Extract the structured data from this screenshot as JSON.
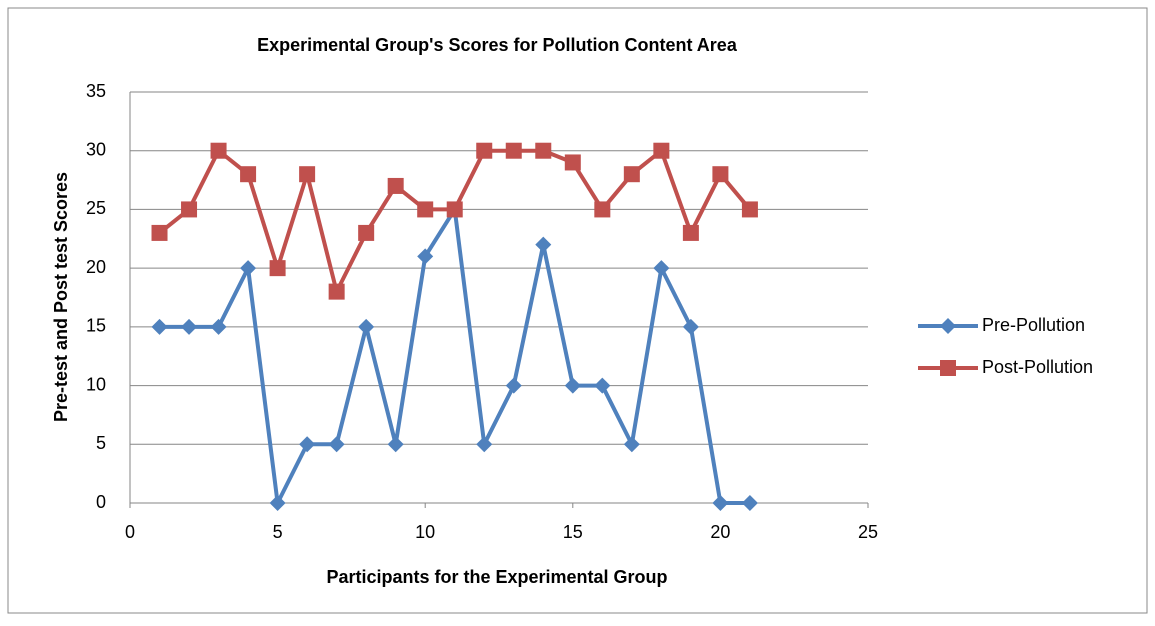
{
  "chart_data": {
    "type": "line",
    "title": "Experimental Group's Scores for Pollution Content Area",
    "xlabel": "Participants for the Experimental Group",
    "ylabel": "Pre-test and Post test Scores",
    "x": [
      1,
      2,
      3,
      4,
      5,
      6,
      7,
      8,
      9,
      10,
      11,
      12,
      13,
      14,
      15,
      16,
      17,
      18,
      19,
      20,
      21
    ],
    "series": [
      {
        "name": "Pre-Pollution",
        "color": "#4f81bd",
        "marker": "diamond",
        "values": [
          15,
          15,
          15,
          20,
          0,
          5,
          5,
          15,
          5,
          21,
          25,
          5,
          10,
          22,
          10,
          10,
          5,
          20,
          15,
          0,
          0
        ]
      },
      {
        "name": "Post-Pollution",
        "color": "#c0504d",
        "marker": "square",
        "values": [
          23,
          25,
          30,
          28,
          20,
          28,
          18,
          23,
          27,
          25,
          25,
          30,
          30,
          30,
          29,
          25,
          28,
          30,
          23,
          28,
          25
        ]
      }
    ],
    "xlim": [
      0,
      25
    ],
    "xticks": [
      0,
      5,
      10,
      15,
      20,
      25
    ],
    "ylim": [
      0,
      35
    ],
    "yticks": [
      0,
      5,
      10,
      15,
      20,
      25,
      30,
      35
    ],
    "grid": true,
    "legend": "right"
  }
}
